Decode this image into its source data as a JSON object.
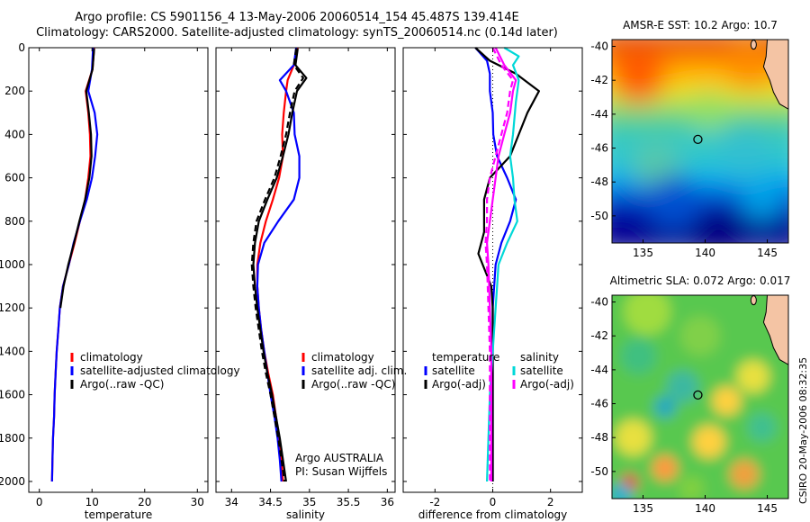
{
  "header": {
    "title_line1": "Argo profile: CS 5901156_4 13-May-2006 20060514_154 45.487S 139.414E",
    "title_line2": "Climatology: CARS2000. Satellite-adjusted climatology: synTS_20060514.nc (0.14d later)"
  },
  "stamp": "CSIRO 20-May-2006 08:32:35",
  "chart_data": [
    {
      "id": "temperature",
      "type": "line",
      "xlabel": "temperature",
      "ylabel": "",
      "xlim": [
        -2,
        32
      ],
      "ylim": [
        2050,
        0
      ],
      "xticks": [
        0,
        10,
        20,
        30
      ],
      "yticks": [
        0,
        200,
        400,
        600,
        800,
        1000,
        1200,
        1400,
        1600,
        1800,
        2000
      ],
      "legend": [
        "climatology",
        "satellite-adjusted climatology",
        "Argo(..raw -QC)"
      ],
      "legend_position": "lower-right",
      "series": [
        {
          "name": "climatology",
          "color": "#ff0000",
          "style": "solid",
          "depth": [
            0,
            100,
            200,
            300,
            400,
            500,
            600,
            700,
            800,
            900,
            1000,
            1100,
            1200,
            1300,
            1400,
            1500,
            1600,
            1700,
            1800,
            1900,
            2000
          ],
          "values": [
            10.4,
            10.1,
            8.8,
            9.3,
            9.6,
            9.7,
            9.3,
            8.7,
            7.7,
            6.7,
            5.6,
            4.5,
            3.9,
            3.6,
            3.3,
            3.1,
            2.9,
            2.8,
            2.6,
            2.5,
            2.4
          ]
        },
        {
          "name": "satellite-adjusted climatology",
          "color": "#0000ff",
          "style": "solid",
          "depth": [
            0,
            100,
            200,
            300,
            400,
            500,
            600,
            700,
            800,
            900,
            1000,
            1100,
            1200,
            1300,
            1400,
            1500,
            1600,
            1700,
            1800,
            1900,
            2000
          ],
          "values": [
            10.2,
            10.0,
            9.3,
            10.5,
            11.0,
            10.6,
            10.0,
            9.0,
            7.7,
            6.5,
            5.6,
            4.5,
            3.9,
            3.6,
            3.3,
            3.1,
            2.9,
            2.8,
            2.6,
            2.5,
            2.4
          ]
        },
        {
          "name": "Argo(..raw -QC)",
          "color": "#000000",
          "style": "solid",
          "depth": [
            5,
            100,
            200,
            300,
            400,
            500,
            600,
            700,
            800,
            900,
            1000,
            1100,
            1200
          ],
          "values": [
            10.4,
            10.1,
            8.9,
            9.4,
            9.8,
            9.9,
            9.5,
            8.7,
            7.6,
            6.6,
            5.5,
            4.6,
            4.0
          ]
        }
      ]
    },
    {
      "id": "salinity",
      "type": "line",
      "xlabel": "salinity",
      "ylabel": "",
      "xlim": [
        33.8,
        36.1
      ],
      "ylim": [
        2050,
        0
      ],
      "xticks": [
        34,
        34.5,
        35,
        35.5,
        36
      ],
      "yticks": [
        0,
        200,
        400,
        600,
        800,
        1000,
        1200,
        1400,
        1600,
        1800,
        2000
      ],
      "legend": [
        "climatology",
        "satellite adj. clim.",
        "Argo(..raw -QC)"
      ],
      "legend_position": "lower-right",
      "annotation": [
        "Argo AUSTRALIA",
        "PI: Susan Wijffels"
      ],
      "series": [
        {
          "name": "climatology",
          "color": "#ff0000",
          "style": "solid",
          "depth": [
            0,
            80,
            150,
            200,
            300,
            400,
            500,
            600,
            700,
            800,
            900,
            1000,
            1100,
            1200,
            1300,
            1400,
            1500,
            1600,
            1700,
            1800,
            1900,
            2000
          ],
          "values": [
            34.85,
            34.8,
            34.72,
            34.7,
            34.67,
            34.65,
            34.66,
            34.61,
            34.53,
            34.44,
            34.37,
            34.33,
            34.33,
            34.35,
            34.38,
            34.42,
            34.47,
            34.53,
            34.57,
            34.61,
            34.64,
            34.66
          ]
        },
        {
          "name": "satellite adj. clim.",
          "color": "#0000ff",
          "style": "solid",
          "depth": [
            0,
            80,
            150,
            200,
            300,
            400,
            500,
            600,
            700,
            800,
            900,
            1000,
            1100,
            1200,
            1300,
            1400,
            1500,
            1600,
            1700,
            1800,
            1900,
            2000
          ],
          "values": [
            34.83,
            34.8,
            34.62,
            34.7,
            34.8,
            34.81,
            34.87,
            34.87,
            34.8,
            34.6,
            34.42,
            34.34,
            34.33,
            34.35,
            34.38,
            34.42,
            34.46,
            34.5,
            34.55,
            34.59,
            34.62,
            34.64
          ]
        },
        {
          "name": "Argo(..raw -QC)",
          "color": "#000000",
          "style": "solid",
          "depth": [
            5,
            80,
            140,
            200,
            300,
            400,
            500,
            600,
            700,
            800,
            900,
            1000,
            1100,
            1200,
            1300,
            1400,
            1500,
            1600,
            1700,
            1800,
            1900,
            2000
          ],
          "values": [
            34.85,
            34.82,
            34.96,
            34.84,
            34.78,
            34.73,
            34.66,
            34.58,
            34.46,
            34.35,
            34.3,
            34.28,
            34.3,
            34.33,
            34.37,
            34.41,
            34.46,
            34.52,
            34.57,
            34.62,
            34.66,
            34.7
          ]
        },
        {
          "name": "Argo(-adj)",
          "color": "#000000",
          "style": "dashed",
          "depth": [
            5,
            80,
            140,
            200,
            300,
            400,
            500,
            600,
            700,
            800,
            900,
            1000,
            1100,
            1200,
            1300,
            1400,
            1500,
            1600,
            1700,
            1800,
            1900,
            2000
          ],
          "values": [
            34.83,
            34.8,
            34.92,
            34.81,
            34.75,
            34.7,
            34.63,
            34.55,
            34.43,
            34.32,
            34.28,
            34.26,
            34.28,
            34.31,
            34.35,
            34.39,
            34.44,
            34.5,
            34.55,
            34.6,
            34.64,
            34.68
          ]
        }
      ]
    },
    {
      "id": "difference",
      "type": "line",
      "xlabel": "difference from climatology",
      "ylabel": "",
      "xlim": [
        -3.1,
        3.1
      ],
      "ylim": [
        2050,
        0
      ],
      "xticks": [
        -2,
        0,
        2
      ],
      "yticks": [
        0,
        200,
        400,
        600,
        800,
        1000,
        1200,
        1400,
        1600,
        1800,
        2000
      ],
      "legend": [
        "temperature",
        "satellite",
        "Argo(-adj)",
        "salinity",
        "satellite",
        "Argo(-adj)"
      ],
      "legend_position": "lower-center",
      "series": [
        {
          "name": "temperature satellite",
          "color": "#0000ff",
          "style": "solid",
          "depth": [
            0,
            60,
            120,
            200,
            300,
            400,
            500,
            600,
            700,
            800,
            900,
            1000,
            1100,
            1200,
            1400,
            1600,
            1800,
            2000
          ],
          "values": [
            -0.6,
            -0.2,
            -0.1,
            -0.1,
            0.0,
            0.02,
            0.15,
            0.5,
            0.8,
            0.6,
            0.3,
            0.1,
            0.05,
            0.0,
            0.0,
            0.0,
            0.0,
            0.0
          ]
        },
        {
          "name": "temperature Argo(-adj)",
          "color": "#000000",
          "style": "solid",
          "depth": [
            0,
            60,
            120,
            200,
            300,
            400,
            500,
            600,
            700,
            800,
            850,
            900,
            950,
            1000,
            1050,
            1100,
            1200,
            1400,
            1600,
            1800,
            2000
          ],
          "values": [
            -0.6,
            -0.1,
            0.8,
            1.6,
            1.2,
            0.9,
            0.6,
            -0.1,
            -0.3,
            -0.3,
            -0.3,
            -0.4,
            -0.5,
            -0.35,
            -0.2,
            -0.05,
            0.0,
            0.0,
            0.0,
            0.0,
            0.0
          ]
        },
        {
          "name": "salinity satellite",
          "color": "#00d8d8",
          "style": "solid",
          "depth": [
            0,
            40,
            80,
            150,
            250,
            400,
            500,
            600,
            700,
            800,
            900,
            1000,
            1200,
            1400,
            1600,
            1800,
            2000
          ],
          "values": [
            0.4,
            0.9,
            0.7,
            0.9,
            0.8,
            0.7,
            0.6,
            0.7,
            0.75,
            0.85,
            0.5,
            0.2,
            0.1,
            0.0,
            -0.1,
            -0.15,
            -0.2
          ]
        },
        {
          "name": "salinity Argo(-adj)",
          "color": "#ff00ff",
          "style": "solid",
          "depth": [
            0,
            80,
            150,
            200,
            300,
            400,
            500,
            600,
            700,
            800,
            900,
            1000,
            1200,
            1400,
            1600,
            1800,
            2000
          ],
          "values": [
            0.1,
            0.4,
            0.8,
            0.7,
            0.6,
            0.4,
            0.2,
            0.1,
            0.0,
            -0.1,
            -0.2,
            -0.15,
            -0.1,
            -0.05,
            -0.05,
            -0.05,
            -0.05
          ]
        },
        {
          "name": "salinity Argo raw",
          "color": "#ff00ff",
          "style": "dashed",
          "depth": [
            0,
            80,
            150,
            200,
            300,
            400,
            500,
            600,
            700,
            800,
            900,
            1000,
            1200,
            1400,
            1600,
            1800,
            2000
          ],
          "values": [
            0.0,
            0.3,
            0.7,
            0.6,
            0.5,
            0.3,
            0.1,
            -0.1,
            -0.2,
            -0.2,
            -0.25,
            -0.2,
            -0.15,
            -0.1,
            -0.1,
            -0.1,
            -0.1
          ]
        }
      ]
    },
    {
      "id": "sst-map",
      "type": "heatmap",
      "title": "AMSR-E SST: 10.2 Argo: 10.7",
      "xlim": [
        132.5,
        146.7
      ],
      "ylim": [
        -51.6,
        -39.6
      ],
      "xticks": [
        135,
        140,
        145
      ],
      "yticks": [
        -40,
        -42,
        -44,
        -46,
        -48,
        -50
      ],
      "float_position": {
        "lon": 139.414,
        "lat": -45.487
      }
    },
    {
      "id": "sla-map",
      "type": "heatmap",
      "title": "Altimetric SLA: 0.072 Argo: 0.017",
      "xlim": [
        132.5,
        146.7
      ],
      "ylim": [
        -51.6,
        -39.6
      ],
      "xticks": [
        135,
        140,
        145
      ],
      "yticks": [
        -40,
        -42,
        -44,
        -46,
        -48,
        -50
      ],
      "float_position": {
        "lon": 139.414,
        "lat": -45.487
      }
    }
  ]
}
